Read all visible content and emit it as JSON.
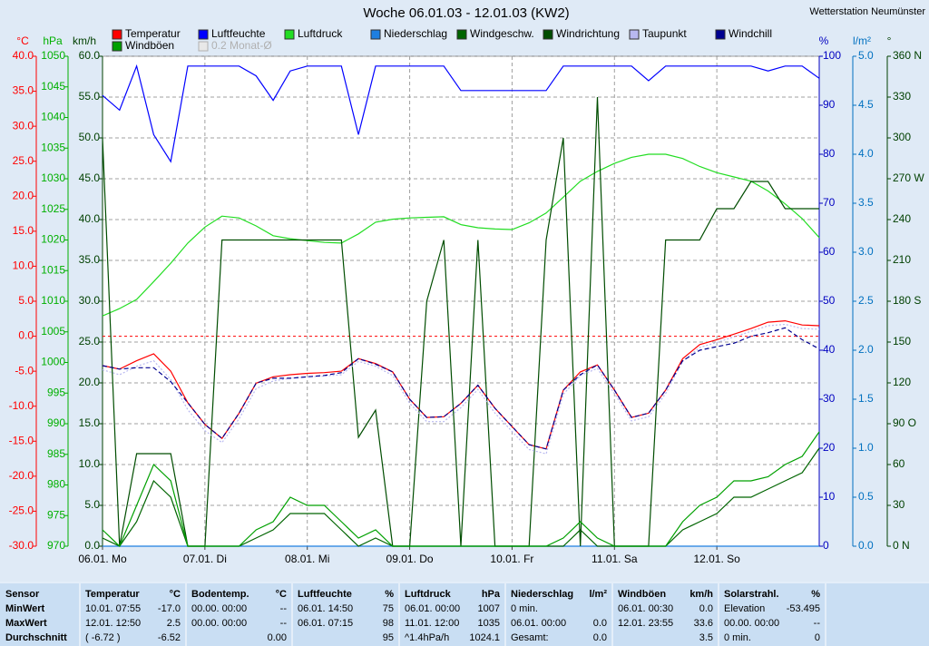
{
  "chart_data": {
    "type": "line",
    "title": "Woche 06.01.03 - 12.01.03 (KW2)",
    "station": "Wetterstation Neumünster",
    "xlim": [
      0,
      168
    ],
    "xticks": [
      {
        "value": 0,
        "label": "06.01. Mo"
      },
      {
        "value": 24,
        "label": "07.01. Di"
      },
      {
        "value": 48,
        "label": "08.01. Mi"
      },
      {
        "value": 72,
        "label": "09.01. Do"
      },
      {
        "value": 96,
        "label": "10.01. Fr"
      },
      {
        "value": 120,
        "label": "11.01. Sa"
      },
      {
        "value": 144,
        "label": "12.01. So"
      }
    ],
    "x": [
      0,
      4,
      8,
      12,
      16,
      20,
      24,
      28,
      32,
      36,
      40,
      44,
      48,
      52,
      56,
      60,
      64,
      68,
      72,
      76,
      80,
      84,
      88,
      92,
      96,
      100,
      104,
      108,
      112,
      116,
      120,
      124,
      128,
      132,
      136,
      140,
      144,
      148,
      152,
      156,
      160,
      164,
      168
    ],
    "grid": true,
    "grid_axis": "wind",
    "axes": {
      "temp": {
        "label": "°C",
        "color": "#ff0000",
        "lim": [
          -30,
          40
        ],
        "ticks": [
          {
            "value": 40,
            "label": "40.0"
          },
          {
            "value": 35,
            "label": "35.0"
          },
          {
            "value": 30,
            "label": "30.0"
          },
          {
            "value": 25,
            "label": "25.0"
          },
          {
            "value": 20,
            "label": "20.0"
          },
          {
            "value": 15,
            "label": "15.0"
          },
          {
            "value": 10,
            "label": "10.0"
          },
          {
            "value": 5,
            "label": "5.0"
          },
          {
            "value": 0,
            "label": "0.0"
          },
          {
            "value": -5,
            "label": "-5.0"
          },
          {
            "value": -10,
            "label": "-10.0"
          },
          {
            "value": -15,
            "label": "-15.0"
          },
          {
            "value": -20,
            "label": "-20.0"
          },
          {
            "value": -25,
            "label": "-25.0"
          },
          {
            "value": -30,
            "label": "-30.0"
          }
        ]
      },
      "press": {
        "label": "hPa",
        "color": "#00b000",
        "lim": [
          970,
          1050
        ],
        "ticks": [
          1050,
          1045,
          1040,
          1035,
          1030,
          1025,
          1020,
          1015,
          1010,
          1005,
          1000,
          995,
          990,
          985,
          980,
          975,
          970
        ]
      },
      "wind": {
        "label": "km/h",
        "color": "#004000",
        "lim": [
          0,
          60
        ],
        "ticks": [
          {
            "value": 60,
            "label": "60.0"
          },
          {
            "value": 55,
            "label": "55.0"
          },
          {
            "value": 50,
            "label": "50.0"
          },
          {
            "value": 45,
            "label": "45.0"
          },
          {
            "value": 40,
            "label": "40.0"
          },
          {
            "value": 35,
            "label": "35.0"
          },
          {
            "value": 30,
            "label": "30.0"
          },
          {
            "value": 25,
            "label": "25.0"
          },
          {
            "value": 20,
            "label": "20.0"
          },
          {
            "value": 15,
            "label": "15.0"
          },
          {
            "value": 10,
            "label": "10.0"
          },
          {
            "value": 5,
            "label": "5.0"
          },
          {
            "value": 0,
            "label": "0.0"
          }
        ]
      },
      "hum": {
        "label": "%",
        "color": "#0000c0",
        "lim": [
          0,
          100
        ],
        "ticks": [
          100,
          90,
          80,
          70,
          60,
          50,
          40,
          30,
          20,
          10,
          0
        ]
      },
      "rain": {
        "label": "l/m²",
        "color": "#0070c0",
        "lim": [
          0,
          5
        ],
        "ticks": [
          {
            "value": 5,
            "label": "5.0"
          },
          {
            "value": 4.5,
            "label": "4.5"
          },
          {
            "value": 4,
            "label": "4.0"
          },
          {
            "value": 3.5,
            "label": "3.5"
          },
          {
            "value": 3,
            "label": "3.0"
          },
          {
            "value": 2.5,
            "label": "2.5"
          },
          {
            "value": 2,
            "label": "2.0"
          },
          {
            "value": 1.5,
            "label": "1.5"
          },
          {
            "value": 1,
            "label": "1.0"
          },
          {
            "value": 0.5,
            "label": "0.5"
          },
          {
            "value": 0,
            "label": "0.0"
          }
        ]
      },
      "dir": {
        "label": "°",
        "color": "#004000",
        "lim": [
          0,
          360
        ],
        "ticks": [
          {
            "value": 360,
            "label": "360 N"
          },
          330,
          300,
          {
            "value": 270,
            "label": "270 W"
          },
          240,
          210,
          {
            "value": 180,
            "label": "180 S"
          },
          150,
          120,
          {
            "value": 90,
            "label": "90 O"
          },
          60,
          30,
          {
            "value": 0,
            "label": "0 N"
          }
        ]
      }
    },
    "reference_lines": [
      {
        "axis": "temp",
        "value": 0,
        "color": "#ff0000"
      }
    ],
    "series": [
      {
        "name": "Temperatur",
        "color": "#ff0000",
        "axis": "temp",
        "values": [
          -4.2,
          -4.7,
          -3.5,
          -2.5,
          -5,
          -9.5,
          -12.6,
          -14.6,
          -11,
          -6.7,
          -5.8,
          -5.5,
          -5.3,
          -5.2,
          -5,
          -3.2,
          -3.9,
          -5.1,
          -9,
          -11.6,
          -11.5,
          -9.6,
          -7,
          -10.3,
          -12.9,
          -15.5,
          -16.1,
          -7.7,
          -5.1,
          -4.1,
          -7.7,
          -11.6,
          -11,
          -7.7,
          -3.2,
          -1.2,
          -0.5,
          0.3,
          1.1,
          2,
          2.2,
          1.6,
          1.5
        ]
      },
      {
        "name": "Luftfeuchte",
        "color": "#0000ff",
        "axis": "hum",
        "values": [
          92,
          89,
          98,
          84,
          78.5,
          98,
          98,
          98,
          98,
          96,
          91,
          97,
          98,
          98,
          98,
          84,
          98,
          98,
          98,
          98,
          98,
          93,
          93,
          93,
          93,
          93,
          93,
          98,
          98,
          98,
          98,
          98,
          95,
          98,
          98,
          98,
          98,
          98,
          98,
          97,
          98,
          98,
          95.5
        ]
      },
      {
        "name": "Luftdruck",
        "color": "#22dd22",
        "axis": "press",
        "values": [
          1007.6,
          1008.8,
          1010.3,
          1013.2,
          1016.2,
          1019.5,
          1022.1,
          1023.9,
          1023.6,
          1022.3,
          1020.7,
          1020.2,
          1019.9,
          1019.6,
          1019.5,
          1021,
          1022.9,
          1023.4,
          1023.6,
          1023.7,
          1023.8,
          1022.5,
          1022,
          1021.8,
          1021.7,
          1022.8,
          1024.4,
          1027,
          1029.6,
          1031.2,
          1032.5,
          1033.5,
          1034,
          1034,
          1033.3,
          1032,
          1031,
          1030.3,
          1029.6,
          1028,
          1025.9,
          1023.5,
          1020.4
        ]
      },
      {
        "name": "Niederschlag",
        "color": "#1e7fe0",
        "axis": "rain",
        "values": [
          0,
          0,
          0,
          0,
          0,
          0,
          0,
          0,
          0,
          0,
          0,
          0,
          0,
          0,
          0,
          0,
          0,
          0,
          0,
          0,
          0,
          0,
          0,
          0,
          0,
          0,
          0,
          0,
          0,
          0,
          0,
          0,
          0,
          0,
          0,
          0,
          0,
          0,
          0,
          0,
          0,
          0,
          0
        ]
      },
      {
        "name": "Windgeschw.",
        "color": "#006400",
        "axis": "wind",
        "values": [
          1,
          0,
          3,
          8,
          6,
          0,
          0,
          0,
          0,
          1,
          2,
          4,
          4,
          4,
          2,
          0,
          1,
          0,
          0,
          0,
          0,
          0,
          0,
          0,
          0,
          0,
          0,
          0,
          2,
          0,
          0,
          0,
          0,
          0,
          2,
          3,
          4,
          6,
          6,
          7,
          8,
          9,
          12
        ]
      },
      {
        "name": "Windrichtung",
        "color": "#004d00",
        "axis": "dir",
        "values": [
          300,
          0,
          68,
          68,
          68,
          0,
          0,
          225,
          225,
          225,
          225,
          225,
          225,
          225,
          225,
          80,
          100,
          0,
          0,
          180,
          225,
          0,
          225,
          0,
          0,
          0,
          225,
          300,
          0,
          330,
          0,
          0,
          0,
          225,
          225,
          225,
          248,
          248,
          268,
          268,
          248,
          248,
          248
        ]
      },
      {
        "name": "Taupunkt",
        "color": "#b8b8f0",
        "axis": "temp",
        "line_style": "dotted",
        "values": [
          -4.8,
          -5.5,
          -4.3,
          -3.5,
          -6.2,
          -10.5,
          -13.5,
          -15.2,
          -11.8,
          -7.5,
          -6.4,
          -6,
          -5.8,
          -5.7,
          -5.5,
          -3.6,
          -4.3,
          -5.6,
          -9.6,
          -12.2,
          -12.2,
          -10.2,
          -7.6,
          -11,
          -13.6,
          -16.2,
          -16.8,
          -8.3,
          -5.6,
          -4.6,
          -8.2,
          -12.1,
          -11.5,
          -8.2,
          -3.6,
          -1.6,
          -0.9,
          -0.1,
          0.7,
          1.5,
          1.7,
          1.1,
          1
        ]
      },
      {
        "name": "Windchill",
        "color": "#000090",
        "axis": "temp",
        "line_style": "dashed",
        "values": [
          -4.2,
          -4.7,
          -4.5,
          -4.5,
          -6.5,
          -9.5,
          -12.6,
          -14.6,
          -11,
          -6.7,
          -6,
          -6,
          -5.8,
          -5.6,
          -5.2,
          -3.2,
          -4,
          -5.1,
          -9,
          -11.6,
          -11.5,
          -9.6,
          -7,
          -10.3,
          -12.9,
          -15.5,
          -16.1,
          -7.7,
          -5.5,
          -4.1,
          -7.7,
          -11.6,
          -11,
          -7.7,
          -3.5,
          -2,
          -1.5,
          -1,
          0,
          0.5,
          1.2,
          -0.5,
          -1.8
        ]
      },
      {
        "name": "Windböen",
        "color": "#00a000",
        "axis": "wind",
        "values": [
          2,
          0,
          5,
          10,
          8,
          0,
          0,
          0,
          0,
          2,
          3,
          6,
          5,
          5,
          3,
          1,
          2,
          0,
          0,
          0,
          0,
          0,
          0,
          0,
          0,
          0,
          0,
          1,
          3,
          1,
          0,
          0,
          0,
          0,
          3,
          5,
          6,
          8,
          8,
          8.5,
          10,
          11,
          14
        ]
      }
    ],
    "legend_extra": [
      {
        "name": "0.2 Monat-Ø",
        "color": "#e8e8e8"
      }
    ]
  },
  "stats_table": {
    "header": "Sensor",
    "row_labels": [
      "MinWert",
      "MaxWert",
      "Durchschnitt"
    ],
    "columns": [
      {
        "name": "Temperatur",
        "unit": "°C",
        "rows": [
          {
            "left": "10.01.  07:55",
            "right": "-17.0"
          },
          {
            "left": "12.01.  12:50",
            "right": "2.5"
          },
          {
            "left": "( -6.72 )",
            "right": "-6.52"
          }
        ]
      },
      {
        "name": "Bodentemp.",
        "unit": "°C",
        "rows": [
          {
            "left": "00.00.  00:00",
            "right": "--"
          },
          {
            "left": "00.00.  00:00",
            "right": "--"
          },
          {
            "right": "0.00"
          }
        ]
      },
      {
        "name": "Luftfeuchte",
        "unit": "%",
        "rows": [
          {
            "left": "06.01.  14:50",
            "right": "75"
          },
          {
            "left": "06.01.  07:15",
            "right": "98"
          },
          {
            "right": "95"
          }
        ]
      },
      {
        "name": "Luftdruck",
        "unit": "hPa",
        "rows": [
          {
            "left": "06.01.  00:00",
            "right": "1007"
          },
          {
            "left": "11.01.  12:00",
            "right": "1035"
          },
          {
            "left": "^1.4hPa/h",
            "right": "1024.1"
          }
        ]
      },
      {
        "name": "Niederschlag",
        "unit": "l/m²",
        "rows": [
          {
            "left": "0 min."
          },
          {
            "left": "06.01.  00:00",
            "right": "0.0"
          },
          {
            "left": "Gesamt:",
            "right": "0.0"
          }
        ]
      },
      {
        "name": "Windböen",
        "unit": "km/h",
        "rows": [
          {
            "left": "06.01.  00:30",
            "right": "0.0"
          },
          {
            "left": "12.01.  23:55",
            "right": "33.6"
          },
          {
            "right": "3.5"
          }
        ]
      },
      {
        "name": "Solarstrahl.",
        "unit": "%",
        "rows": [
          {
            "left": "Elevation",
            "right": "-53.495"
          },
          {
            "left": "00.00.  00:00",
            "right": "--"
          },
          {
            "left": "0 min.",
            "right": "0"
          }
        ]
      }
    ]
  }
}
